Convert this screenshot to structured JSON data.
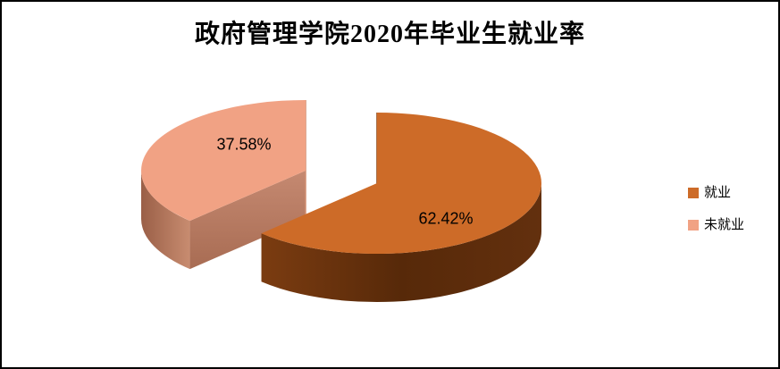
{
  "chart_data": {
    "type": "pie",
    "style": "3d-exploded-pie",
    "title": "政府管理学院2020年毕业生就业率",
    "categories": [
      "就业",
      "未就业"
    ],
    "values": [
      62.42,
      37.58
    ],
    "value_labels": [
      "62.42%",
      "37.58%"
    ],
    "colors": [
      "#CD6B28",
      "#F1A284"
    ],
    "side_colors": [
      "#63300E",
      "#B97F68"
    ],
    "start_angle_deg": 0,
    "direction": "clockwise",
    "legend_position": "right",
    "background_color": "#FFFFFF",
    "frame_color": "#000000"
  }
}
